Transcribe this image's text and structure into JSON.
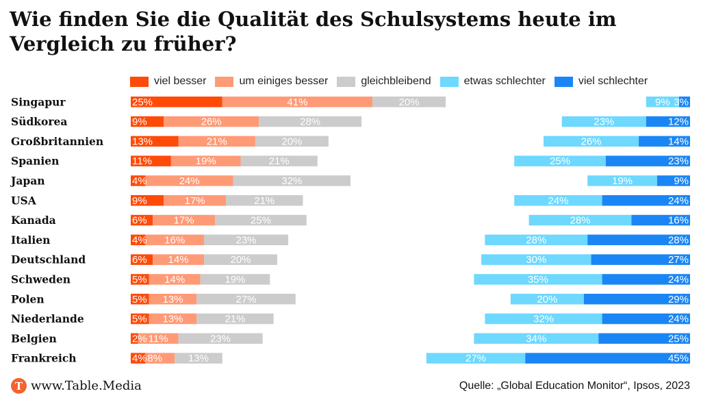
{
  "header": {
    "title": "Wie finden Sie die Qualität des Schulsystems heute im Vergleich zu früher?"
  },
  "colors": {
    "viel_besser": "#FF4A08",
    "um_einiges_besser": "#FF9A76",
    "gleichbleibend": "#CCCCCC",
    "etwas_schlechter": "#6ED8FF",
    "viel_schlechter": "#1A86F5"
  },
  "chart_data": {
    "type": "bar",
    "orientation": "horizontal",
    "stacked": true,
    "unit": "%",
    "categories": [
      "Singapur",
      "Südkorea",
      "Großbritannien",
      "Spanien",
      "Japan",
      "USA",
      "Kanada",
      "Italien",
      "Deutschland",
      "Schweden",
      "Polen",
      "Niederlande",
      "Belgien",
      "Frankreich"
    ],
    "series": [
      {
        "name": "viel besser",
        "color": "#FF4A08",
        "values": [
          25,
          9,
          13,
          11,
          4,
          9,
          6,
          4,
          6,
          5,
          5,
          5,
          2,
          4
        ]
      },
      {
        "name": "um einiges besser",
        "color": "#FF9A76",
        "values": [
          41,
          26,
          21,
          19,
          24,
          17,
          17,
          16,
          14,
          14,
          13,
          13,
          11,
          8
        ]
      },
      {
        "name": "gleichbleibend",
        "color": "#CCCCCC",
        "values": [
          20,
          28,
          20,
          21,
          32,
          21,
          25,
          23,
          20,
          19,
          27,
          21,
          23,
          13
        ]
      },
      {
        "name": "etwas schlechter",
        "color": "#6ED8FF",
        "values": [
          9,
          23,
          26,
          25,
          19,
          24,
          28,
          28,
          30,
          35,
          20,
          32,
          34,
          27
        ]
      },
      {
        "name": "viel schlechter",
        "color": "#1A86F5",
        "values": [
          3,
          12,
          14,
          23,
          9,
          24,
          16,
          28,
          27,
          24,
          29,
          24,
          25,
          45
        ]
      }
    ],
    "legend_position": "top",
    "grid": false
  },
  "footer": {
    "logo_letter": "T",
    "site": "www.Table.Media",
    "source": "Quelle: „Global Education Monitor“, Ipsos, 2023"
  }
}
